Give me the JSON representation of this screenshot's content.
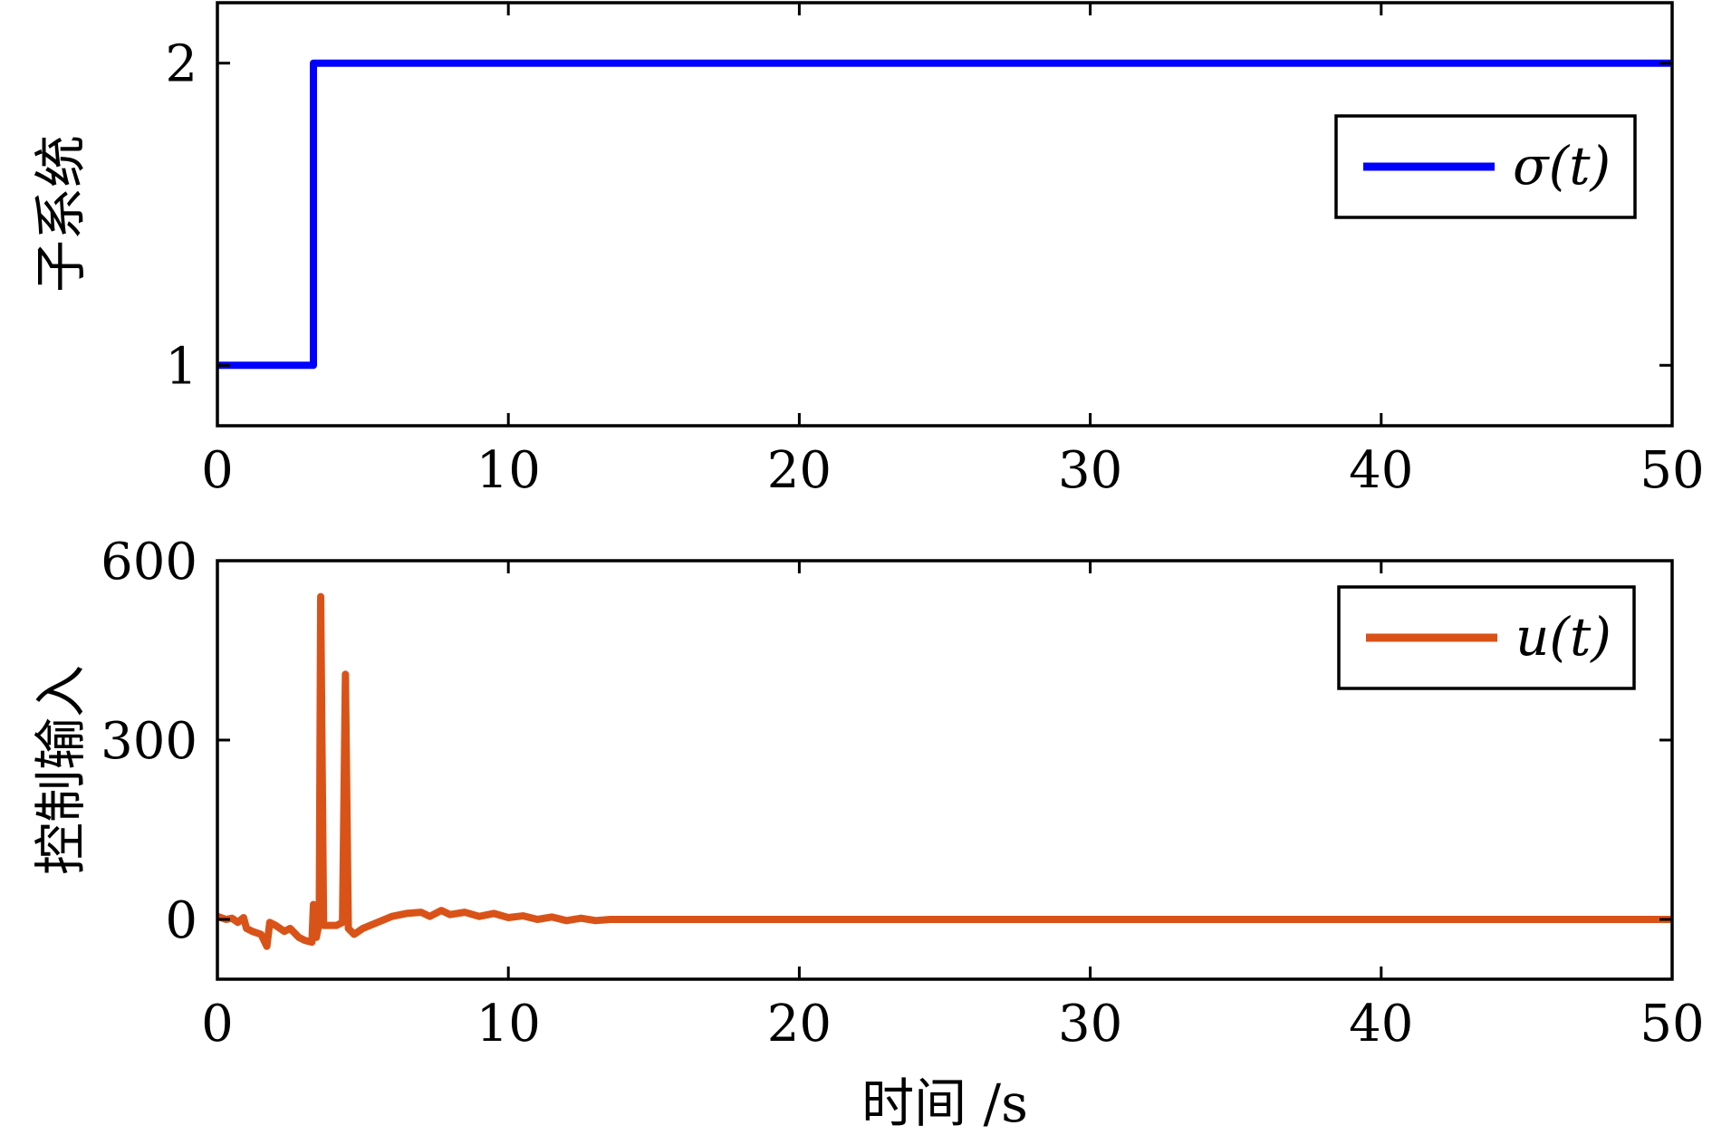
{
  "chart_data": [
    {
      "type": "line",
      "ylabel": "子系统",
      "xlabel": "",
      "xlim": [
        0,
        50
      ],
      "ylim": [
        0.8,
        2.2
      ],
      "xticks": [
        "0",
        "10",
        "20",
        "30",
        "40",
        "50"
      ],
      "yticks": [
        "1",
        "2"
      ],
      "grid": false,
      "legend_position": "top-right",
      "series": [
        {
          "name": "σ(t)",
          "color": "#0000ff",
          "step": true,
          "points": [
            [
              0,
              1
            ],
            [
              3.3,
              1
            ],
            [
              3.3,
              2
            ],
            [
              50,
              2
            ]
          ]
        }
      ]
    },
    {
      "type": "line",
      "ylabel": "控制输入",
      "xlabel": "时间 /s",
      "xlim": [
        0,
        50
      ],
      "ylim": [
        -100,
        600
      ],
      "xticks": [
        "0",
        "10",
        "20",
        "30",
        "40",
        "50"
      ],
      "yticks": [
        "0",
        "300",
        "600"
      ],
      "grid": false,
      "legend_position": "top-right",
      "series": [
        {
          "name": "u(t)",
          "color": "#d95319",
          "points": [
            [
              0,
              5
            ],
            [
              0.3,
              0
            ],
            [
              0.5,
              2
            ],
            [
              0.7,
              -5
            ],
            [
              0.9,
              3
            ],
            [
              1.0,
              -15
            ],
            [
              1.2,
              -20
            ],
            [
              1.5,
              -25
            ],
            [
              1.7,
              -45
            ],
            [
              1.8,
              -5
            ],
            [
              2.0,
              -10
            ],
            [
              2.3,
              -20
            ],
            [
              2.5,
              -15
            ],
            [
              2.8,
              -30
            ],
            [
              3.0,
              -35
            ],
            [
              3.25,
              -38
            ],
            [
              3.3,
              25
            ],
            [
              3.4,
              -30
            ],
            [
              3.5,
              -5
            ],
            [
              3.55,
              540
            ],
            [
              3.65,
              -10
            ],
            [
              3.8,
              -10
            ],
            [
              4.1,
              -10
            ],
            [
              4.3,
              -5
            ],
            [
              4.4,
              410
            ],
            [
              4.5,
              -15
            ],
            [
              4.7,
              -25
            ],
            [
              5.0,
              -15
            ],
            [
              5.5,
              -5
            ],
            [
              6.0,
              5
            ],
            [
              6.5,
              10
            ],
            [
              7.0,
              12
            ],
            [
              7.3,
              5
            ],
            [
              7.7,
              15
            ],
            [
              8.0,
              8
            ],
            [
              8.5,
              12
            ],
            [
              9.0,
              5
            ],
            [
              9.5,
              10
            ],
            [
              10.0,
              3
            ],
            [
              10.5,
              6
            ],
            [
              11.0,
              0
            ],
            [
              11.5,
              4
            ],
            [
              12.0,
              -2
            ],
            [
              12.5,
              2
            ],
            [
              13.0,
              -2
            ],
            [
              13.5,
              0
            ],
            [
              14.0,
              0
            ],
            [
              50,
              0
            ]
          ]
        }
      ]
    }
  ]
}
